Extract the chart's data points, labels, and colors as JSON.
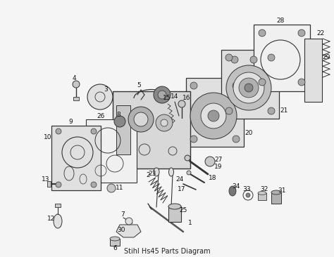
{
  "title": "Stihl Hs45 Parts Diagram",
  "bg_color": "#f5f5f5",
  "line_color": "#333333",
  "label_color": "#111111",
  "gray_fill": "#c8c8c8",
  "light_fill": "#e0e0e0",
  "white_fill": "#f0f0f0"
}
